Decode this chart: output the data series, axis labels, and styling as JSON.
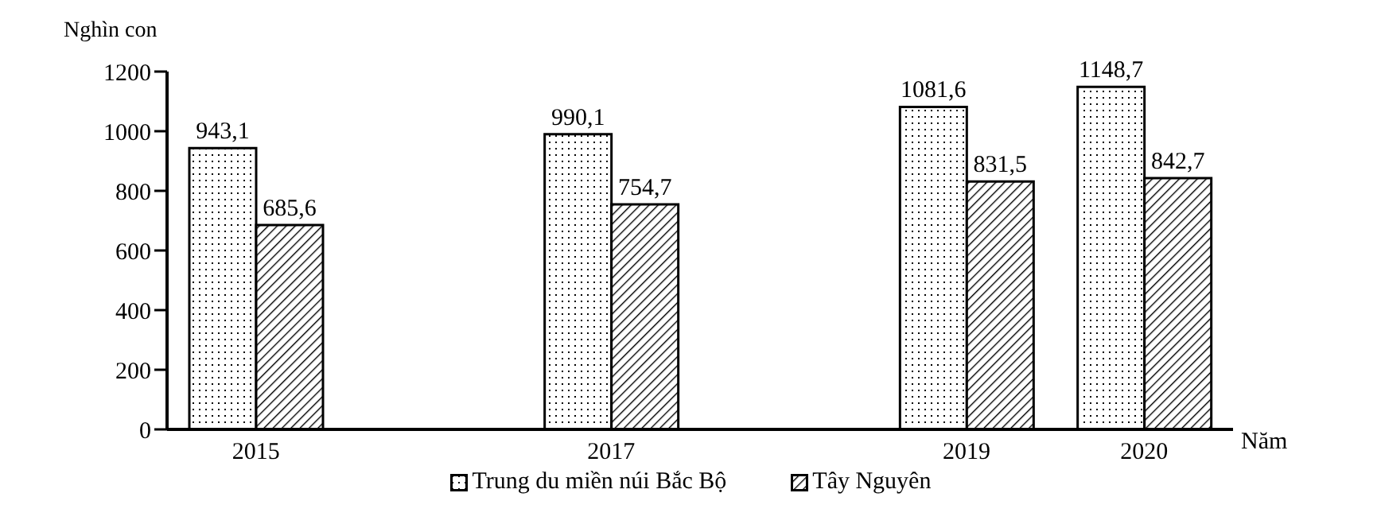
{
  "chart_data": {
    "type": "bar",
    "xlabel": "Năm",
    "ylabel": "Nghìn con",
    "x": [
      2015,
      2017,
      2019,
      2020
    ],
    "xlim": [
      2014.5,
      2020.5
    ],
    "xticks": [
      2015,
      2017,
      2019,
      2020
    ],
    "ylim": [
      0,
      1200
    ],
    "yticks": [
      0,
      200,
      400,
      600,
      800,
      1000,
      1200
    ],
    "series": [
      {
        "name": "Trung du miền núi Bắc Bộ",
        "color": "#000000",
        "values": [
          943.1,
          990.1,
          1081.6,
          1148.7
        ],
        "value_labels": [
          "943,1",
          "990,1",
          "1081,6",
          "1148,7"
        ]
      },
      {
        "name": "Tây Nguyên",
        "color": "#000000",
        "values": [
          685.6,
          754.7,
          831.5,
          842.7
        ],
        "value_labels": [
          "685,6",
          "754,7",
          "831,5",
          "842,7"
        ]
      }
    ],
    "grid": false,
    "legend": "bottom"
  }
}
